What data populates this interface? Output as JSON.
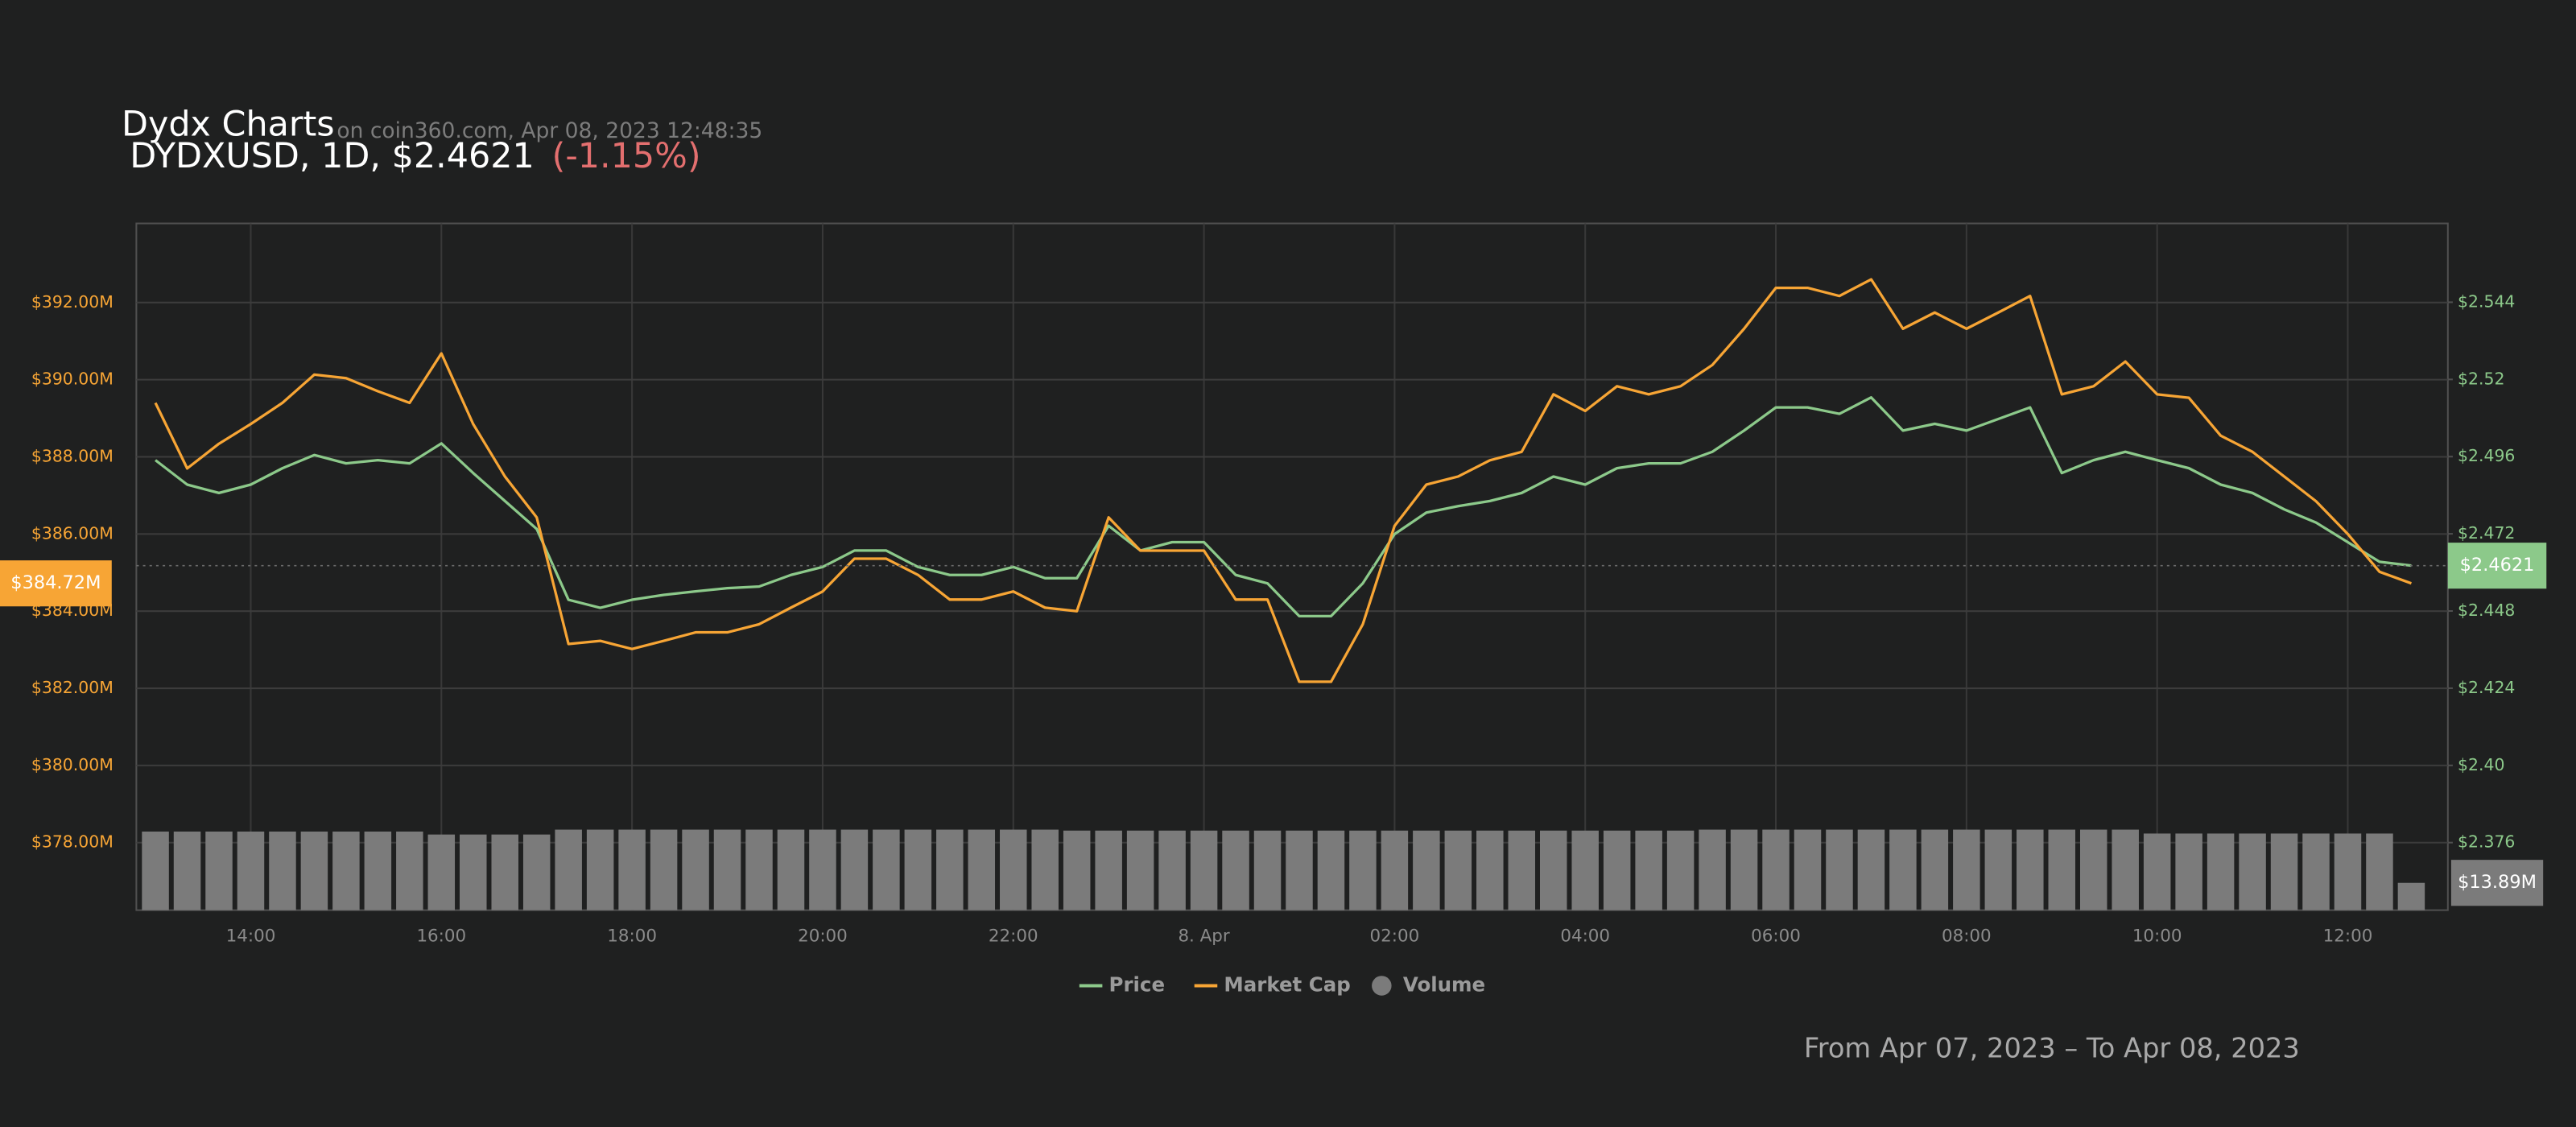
{
  "chart_data": {
    "type": "line",
    "title": "Dydx Charts",
    "source": "on coin360.com, Apr 08, 2023 12:48:35",
    "subtitle": "DYDXUSD, 1D, $2.4621",
    "change": "(-1.15%)",
    "change_color": "#e36f6f",
    "footer": "From Apr 07, 2023 – To Apr 08, 2023",
    "grid": true,
    "x": [
      "Apr 07 13:00",
      "Apr 07 13:20",
      "Apr 07 13:40",
      "Apr 07 14:00",
      "Apr 07 14:20",
      "Apr 07 14:40",
      "Apr 07 15:00",
      "Apr 07 15:20",
      "Apr 07 15:40",
      "Apr 07 16:00",
      "Apr 07 16:20",
      "Apr 07 16:40",
      "Apr 07 17:00",
      "Apr 07 17:20",
      "Apr 07 17:40",
      "Apr 07 18:00",
      "Apr 07 18:20",
      "Apr 07 18:40",
      "Apr 07 19:00",
      "Apr 07 19:20",
      "Apr 07 19:40",
      "Apr 07 20:00",
      "Apr 07 20:20",
      "Apr 07 20:40",
      "Apr 07 21:00",
      "Apr 07 21:20",
      "Apr 07 21:40",
      "Apr 07 22:00",
      "Apr 07 22:20",
      "Apr 07 22:40",
      "Apr 07 23:00",
      "Apr 07 23:20",
      "Apr 07 23:40",
      "Apr 08 00:00",
      "Apr 08 00:20",
      "Apr 08 00:40",
      "Apr 08 01:00",
      "Apr 08 01:20",
      "Apr 08 01:40",
      "Apr 08 02:00",
      "Apr 08 02:20",
      "Apr 08 02:40",
      "Apr 08 03:00",
      "Apr 08 03:20",
      "Apr 08 03:40",
      "Apr 08 04:00",
      "Apr 08 04:20",
      "Apr 08 04:40",
      "Apr 08 05:00",
      "Apr 08 05:20",
      "Apr 08 05:40",
      "Apr 08 06:00",
      "Apr 08 06:20",
      "Apr 08 06:40",
      "Apr 08 07:00",
      "Apr 08 07:20",
      "Apr 08 07:40",
      "Apr 08 08:00",
      "Apr 08 08:20",
      "Apr 08 08:40",
      "Apr 08 09:00",
      "Apr 08 09:20",
      "Apr 08 09:40",
      "Apr 08 10:00",
      "Apr 08 10:20",
      "Apr 08 10:40",
      "Apr 08 11:00",
      "Apr 08 11:20",
      "Apr 08 11:40",
      "Apr 08 12:00",
      "Apr 08 12:20",
      "Apr 08 12:40"
    ],
    "xlim": [
      "Apr 07 12:48",
      "Apr 08 13:03"
    ],
    "xticks": [
      {
        "value": "Apr 07 14:00",
        "label": "14:00"
      },
      {
        "value": "Apr 07 16:00",
        "label": "16:00"
      },
      {
        "value": "Apr 07 18:00",
        "label": "18:00"
      },
      {
        "value": "Apr 07 20:00",
        "label": "20:00"
      },
      {
        "value": "Apr 07 22:00",
        "label": "22:00"
      },
      {
        "value": "Apr 08 00:00",
        "label": "8. Apr"
      },
      {
        "value": "Apr 08 02:00",
        "label": "02:00"
      },
      {
        "value": "Apr 08 04:00",
        "label": "04:00"
      },
      {
        "value": "Apr 08 06:00",
        "label": "06:00"
      },
      {
        "value": "Apr 08 08:00",
        "label": "08:00"
      },
      {
        "value": "Apr 08 10:00",
        "label": "10:00"
      },
      {
        "value": "Apr 08 12:00",
        "label": "12:00"
      }
    ],
    "ylim": [
      376.25,
      394.05
    ],
    "yticks": [
      {
        "value": 378,
        "label": "$378.00M"
      },
      {
        "value": 380,
        "label": "$380.00M"
      },
      {
        "value": 382,
        "label": "$382.00M"
      },
      {
        "value": 384,
        "label": "$384.00M"
      },
      {
        "value": 386,
        "label": "$386.00M"
      },
      {
        "value": 388,
        "label": "$388.00M"
      },
      {
        "value": 390,
        "label": "$390.00M"
      },
      {
        "value": 392,
        "label": "$392.00M"
      }
    ],
    "y2lim": [
      2.355,
      2.5685
    ],
    "y2ticks": [
      {
        "value": 2.376,
        "label": "$2.376"
      },
      {
        "value": 2.4,
        "label": "$2.40"
      },
      {
        "value": 2.424,
        "label": "$2.424"
      },
      {
        "value": 2.448,
        "label": "$2.448"
      },
      {
        "value": 2.472,
        "label": "$2.472"
      },
      {
        "value": 2.496,
        "label": "$2.496"
      },
      {
        "value": 2.52,
        "label": "$2.52"
      },
      {
        "value": 2.544,
        "label": "$2.544"
      }
    ],
    "vlim": [
      0,
      46
    ],
    "series": [
      {
        "name": "Price",
        "color": "#8cc98a",
        "axis": "y2",
        "values": [
          2.4949,
          2.4873,
          2.4847,
          2.4873,
          2.4924,
          2.4965,
          2.4939,
          2.4949,
          2.4939,
          2.5001,
          2.4909,
          2.4822,
          2.4735,
          2.4515,
          2.449,
          2.4515,
          2.453,
          2.4541,
          2.4551,
          2.4556,
          2.4592,
          2.4617,
          2.4668,
          2.4668,
          2.4617,
          2.4592,
          2.4592,
          2.4617,
          2.4582,
          2.4582,
          2.4745,
          2.4668,
          2.4694,
          2.4694,
          2.4592,
          2.4566,
          2.4464,
          2.4464,
          2.4566,
          2.4719,
          2.4786,
          2.4806,
          2.4822,
          2.4847,
          2.4898,
          2.4873,
          2.4924,
          2.4939,
          2.4939,
          2.4975,
          2.5041,
          2.5113,
          2.5113,
          2.5093,
          2.5144,
          2.5041,
          2.5062,
          2.5041,
          2.5077,
          2.5113,
          2.4909,
          2.4949,
          2.4975,
          2.4949,
          2.4924,
          2.4873,
          2.4847,
          2.4796,
          2.4755,
          2.4694,
          2.4633,
          2.4621
        ],
        "current": {
          "value": 2.4621,
          "label": "$2.4621"
        }
      },
      {
        "name": "Market Cap",
        "color": "#f7a535",
        "axis": "y",
        "values": [
          389.4,
          387.7,
          388.34,
          388.85,
          389.4,
          390.13,
          390.04,
          389.7,
          389.4,
          390.68,
          388.85,
          387.49,
          386.43,
          383.15,
          383.23,
          383.02,
          383.23,
          383.45,
          383.45,
          383.66,
          384.09,
          384.51,
          385.36,
          385.36,
          384.94,
          384.3,
          384.3,
          384.51,
          384.09,
          384.0,
          386.43,
          385.57,
          385.57,
          385.57,
          384.3,
          384.3,
          382.17,
          382.17,
          383.66,
          386.21,
          387.28,
          387.49,
          387.91,
          388.13,
          389.62,
          389.19,
          389.83,
          389.62,
          389.83,
          390.38,
          391.32,
          392.38,
          392.38,
          392.17,
          392.6,
          391.32,
          391.74,
          391.32,
          391.74,
          392.17,
          389.62,
          389.83,
          390.47,
          389.62,
          389.53,
          388.55,
          388.13,
          387.49,
          386.85,
          386.0,
          385.02,
          384.72
        ],
        "current": {
          "value": 384.72,
          "label": "$384.72M"
        }
      },
      {
        "name": "Volume",
        "color": "#7b7b7b",
        "type": "bar",
        "axis": "volume",
        "values": [
          40.0,
          40.0,
          40.0,
          40.0,
          40.0,
          40.0,
          40.0,
          40.0,
          40.0,
          38.5,
          38.5,
          38.5,
          38.5,
          41.0,
          41.0,
          41.0,
          41.0,
          41.0,
          41.0,
          41.0,
          41.0,
          41.0,
          41.0,
          41.0,
          41.0,
          41.0,
          41.0,
          41.0,
          41.0,
          40.5,
          40.5,
          40.5,
          40.5,
          40.5,
          40.5,
          40.5,
          40.5,
          40.5,
          40.5,
          40.5,
          40.5,
          40.5,
          40.5,
          40.5,
          40.5,
          40.5,
          40.5,
          40.5,
          40.5,
          41.0,
          41.0,
          41.0,
          41.0,
          41.0,
          41.0,
          41.0,
          41.0,
          41.0,
          41.0,
          41.0,
          41.0,
          41.0,
          41.0,
          39.0,
          39.0,
          39.0,
          39.0,
          39.0,
          39.0,
          39.0,
          39.0,
          13.89
        ],
        "current": {
          "value": 13.89,
          "label": "$13.89M"
        }
      }
    ]
  }
}
